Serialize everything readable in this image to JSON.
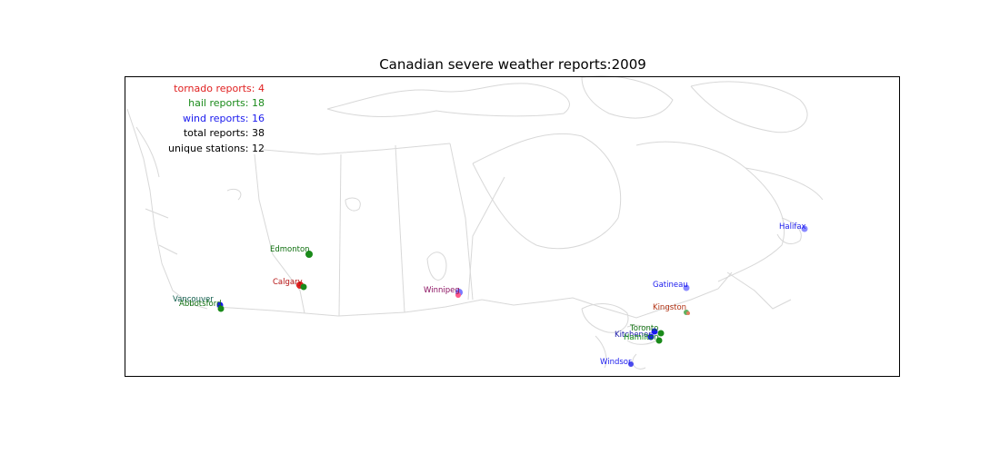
{
  "title": "Canadian severe weather reports:2009",
  "legend": {
    "tornado": "tornado reports: 4",
    "hail": "hail reports: 18",
    "wind": "wind reports: 16",
    "total": "total reports: 38",
    "stations": "unique stations: 12"
  },
  "colors": {
    "tornado": "#e02020",
    "hail": "#1a8a1a",
    "wind": "#1a1aee",
    "map_lines": "#d8d8d8",
    "frame": "#000000"
  },
  "cities": [
    {
      "name": "Edmonton",
      "label_color": "#0d6e0d"
    },
    {
      "name": "Calgary",
      "label_color": "#b51212"
    },
    {
      "name": "Vancouver",
      "label_color": "#0d5a4a"
    },
    {
      "name": "Abbotsford",
      "label_color": "#0d6e0d"
    },
    {
      "name": "Winnipeg",
      "label_color": "#8a1060"
    },
    {
      "name": "Gatineau",
      "label_color": "#1a1aee"
    },
    {
      "name": "Kingston",
      "label_color": "#b02f10"
    },
    {
      "name": "Toronto",
      "label_color": "#0d6e0d"
    },
    {
      "name": "Kitchener",
      "label_color": "#1a1aaa"
    },
    {
      "name": "Hamilton",
      "label_color": "#0d8a0d"
    },
    {
      "name": "Windsor",
      "label_color": "#1a1aee"
    },
    {
      "name": "Halifax",
      "label_color": "#1a1aee"
    }
  ]
}
